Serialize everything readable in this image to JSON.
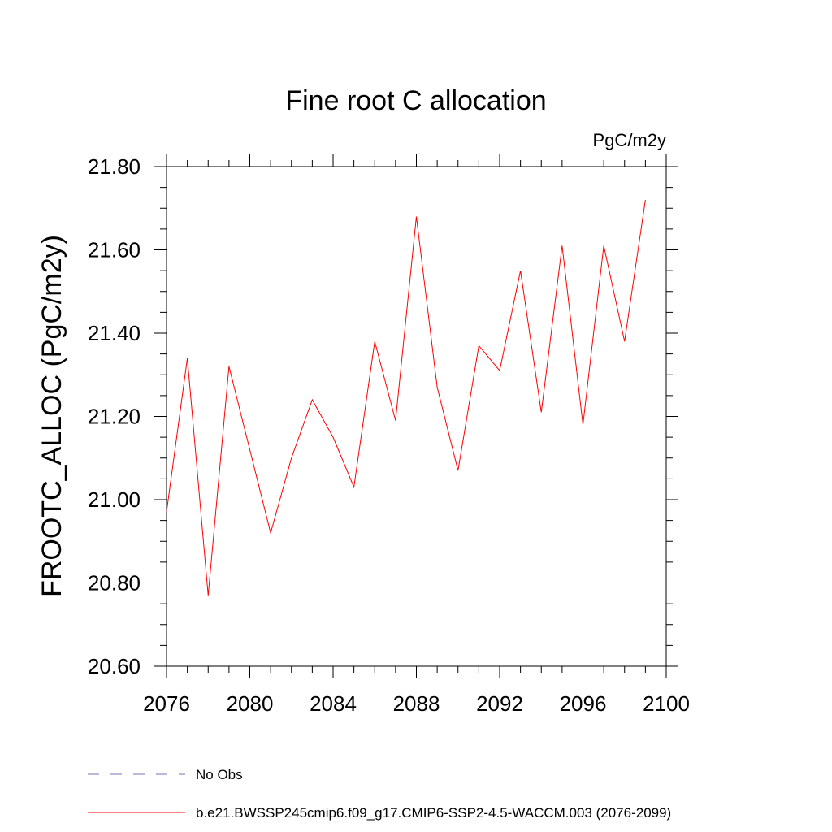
{
  "chart_data": {
    "type": "line",
    "title": "Fine root C allocation",
    "units": "PgC/m2y",
    "ylabel": "FROOTC_ALLOC  (PgC/m2y)",
    "xlabel": "",
    "xlim": [
      2076,
      2100
    ],
    "ylim": [
      20.6,
      21.8
    ],
    "xticks": [
      2076,
      2080,
      2084,
      2088,
      2092,
      2096,
      2100
    ],
    "xtick_labels": [
      "2076",
      "2080",
      "2084",
      "2088",
      "2092",
      "2096",
      "2100"
    ],
    "yticks": [
      20.6,
      20.8,
      21.0,
      21.2,
      21.4,
      21.6,
      21.8
    ],
    "ytick_labels": [
      "20.60",
      "20.80",
      "21.00",
      "21.20",
      "21.40",
      "21.60",
      "21.80"
    ],
    "grid": false,
    "legend_position": "bottom",
    "series": [
      {
        "name": "No Obs",
        "color": "#7b6fb3",
        "dash": "dashed",
        "x": [],
        "values": []
      },
      {
        "name": "b.e21.BWSSP245cmip6.f09_g17.CMIP6-SSP2-4.5-WACCM.003 (2076-2099)",
        "color": "#ff0000",
        "dash": "solid",
        "x": [
          2076,
          2077,
          2078,
          2079,
          2080,
          2081,
          2082,
          2083,
          2084,
          2085,
          2086,
          2087,
          2088,
          2089,
          2090,
          2091,
          2092,
          2093,
          2094,
          2095,
          2096,
          2097,
          2098,
          2099
        ],
        "values": [
          20.97,
          21.34,
          20.77,
          21.32,
          21.12,
          20.92,
          21.1,
          21.24,
          21.15,
          21.03,
          21.38,
          21.19,
          21.68,
          21.27,
          21.07,
          21.37,
          21.31,
          21.55,
          21.21,
          21.61,
          21.18,
          21.61,
          21.38,
          21.72
        ]
      }
    ]
  }
}
